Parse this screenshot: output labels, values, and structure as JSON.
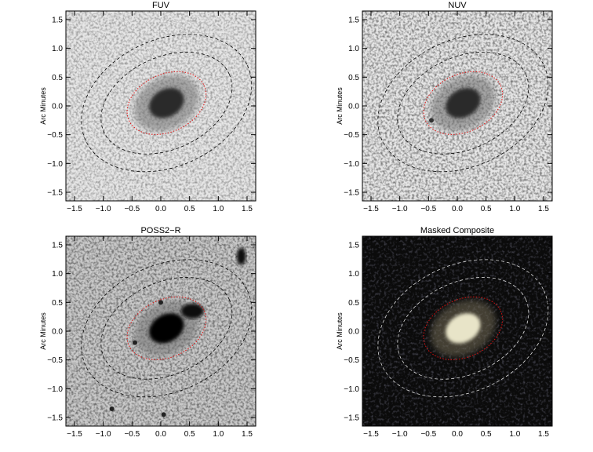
{
  "chart_data": [
    {
      "type": "image",
      "title": "FUV",
      "ylabel": "Arc Minutes",
      "xlim": [
        -1.65,
        1.65
      ],
      "ylim": [
        -1.65,
        1.65
      ],
      "xticks": [
        {
          "value": -1.5,
          "label": "−1.5"
        },
        {
          "value": -1,
          "label": "−1.0"
        },
        {
          "value": -0.5,
          "label": "−0.5"
        },
        {
          "value": 0,
          "label": "0.0"
        },
        {
          "value": 0.5,
          "label": "0.5"
        },
        {
          "value": 1,
          "label": "1.0"
        },
        {
          "value": 1.5,
          "label": "1.5"
        }
      ],
      "yticks": [
        {
          "value": -1.5,
          "label": "−1.5"
        },
        {
          "value": -1,
          "label": "−1.0"
        },
        {
          "value": -0.5,
          "label": "−0.5"
        },
        {
          "value": 0,
          "label": "0.0"
        },
        {
          "value": 0.5,
          "label": "0.5"
        },
        {
          "value": 1,
          "label": "1.0"
        },
        {
          "value": 1.5,
          "label": "1.5"
        }
      ]
    },
    {
      "type": "image",
      "title": "NUV",
      "ylabel": "Arc Minutes",
      "xlim": [
        -1.65,
        1.65
      ],
      "ylim": [
        -1.65,
        1.65
      ],
      "xticks": [
        {
          "value": -1.5,
          "label": "−1.5"
        },
        {
          "value": -1,
          "label": "−1.0"
        },
        {
          "value": -0.5,
          "label": "−0.5"
        },
        {
          "value": 0,
          "label": "0.0"
        },
        {
          "value": 0.5,
          "label": "0.5"
        },
        {
          "value": 1,
          "label": "1.0"
        },
        {
          "value": 1.5,
          "label": "1.5"
        }
      ],
      "yticks": [
        {
          "value": -1.5,
          "label": "−1.5"
        },
        {
          "value": -1,
          "label": "−1.0"
        },
        {
          "value": -0.5,
          "label": "−0.5"
        },
        {
          "value": 0,
          "label": "0.0"
        },
        {
          "value": 0.5,
          "label": "0.5"
        },
        {
          "value": 1,
          "label": "1.0"
        },
        {
          "value": 1.5,
          "label": "1.5"
        }
      ]
    },
    {
      "type": "image",
      "title": "POSS2−R",
      "ylabel": "Arc Minutes",
      "xlim": [
        -1.65,
        1.65
      ],
      "ylim": [
        -1.65,
        1.65
      ],
      "xticks": [
        {
          "value": -1.5,
          "label": "−1.5"
        },
        {
          "value": -1,
          "label": "−1.0"
        },
        {
          "value": -0.5,
          "label": "−0.5"
        },
        {
          "value": 0,
          "label": "0.0"
        },
        {
          "value": 0.5,
          "label": "0.5"
        },
        {
          "value": 1,
          "label": "1.0"
        },
        {
          "value": 1.5,
          "label": "1.5"
        }
      ],
      "yticks": [
        {
          "value": -1.5,
          "label": "−1.5"
        },
        {
          "value": -1,
          "label": "−1.0"
        },
        {
          "value": -0.5,
          "label": "−0.5"
        },
        {
          "value": 0,
          "label": "0.0"
        },
        {
          "value": 0.5,
          "label": "0.5"
        },
        {
          "value": 1,
          "label": "1.0"
        },
        {
          "value": 1.5,
          "label": "1.5"
        }
      ]
    },
    {
      "type": "image",
      "title": "Masked Composite",
      "ylabel": "Arc Minutes",
      "xlim": [
        -1.65,
        1.65
      ],
      "ylim": [
        -1.65,
        1.65
      ],
      "xticks": [
        {
          "value": -1.5,
          "label": "−1.5"
        },
        {
          "value": -1,
          "label": "−1.0"
        },
        {
          "value": -0.5,
          "label": "−0.5"
        },
        {
          "value": 0,
          "label": "0.0"
        },
        {
          "value": 0.5,
          "label": "0.5"
        },
        {
          "value": 1,
          "label": "1.0"
        },
        {
          "value": 1.5,
          "label": "1.5"
        }
      ],
      "yticks": [
        {
          "value": -1.5,
          "label": "−1.5"
        },
        {
          "value": -1,
          "label": "−1.0"
        },
        {
          "value": -0.5,
          "label": "−0.5"
        },
        {
          "value": 0,
          "label": "0.0"
        },
        {
          "value": 0.5,
          "label": "0.5"
        },
        {
          "value": 1,
          "label": "1.0"
        },
        {
          "value": 1.5,
          "label": "1.5"
        }
      ]
    }
  ]
}
